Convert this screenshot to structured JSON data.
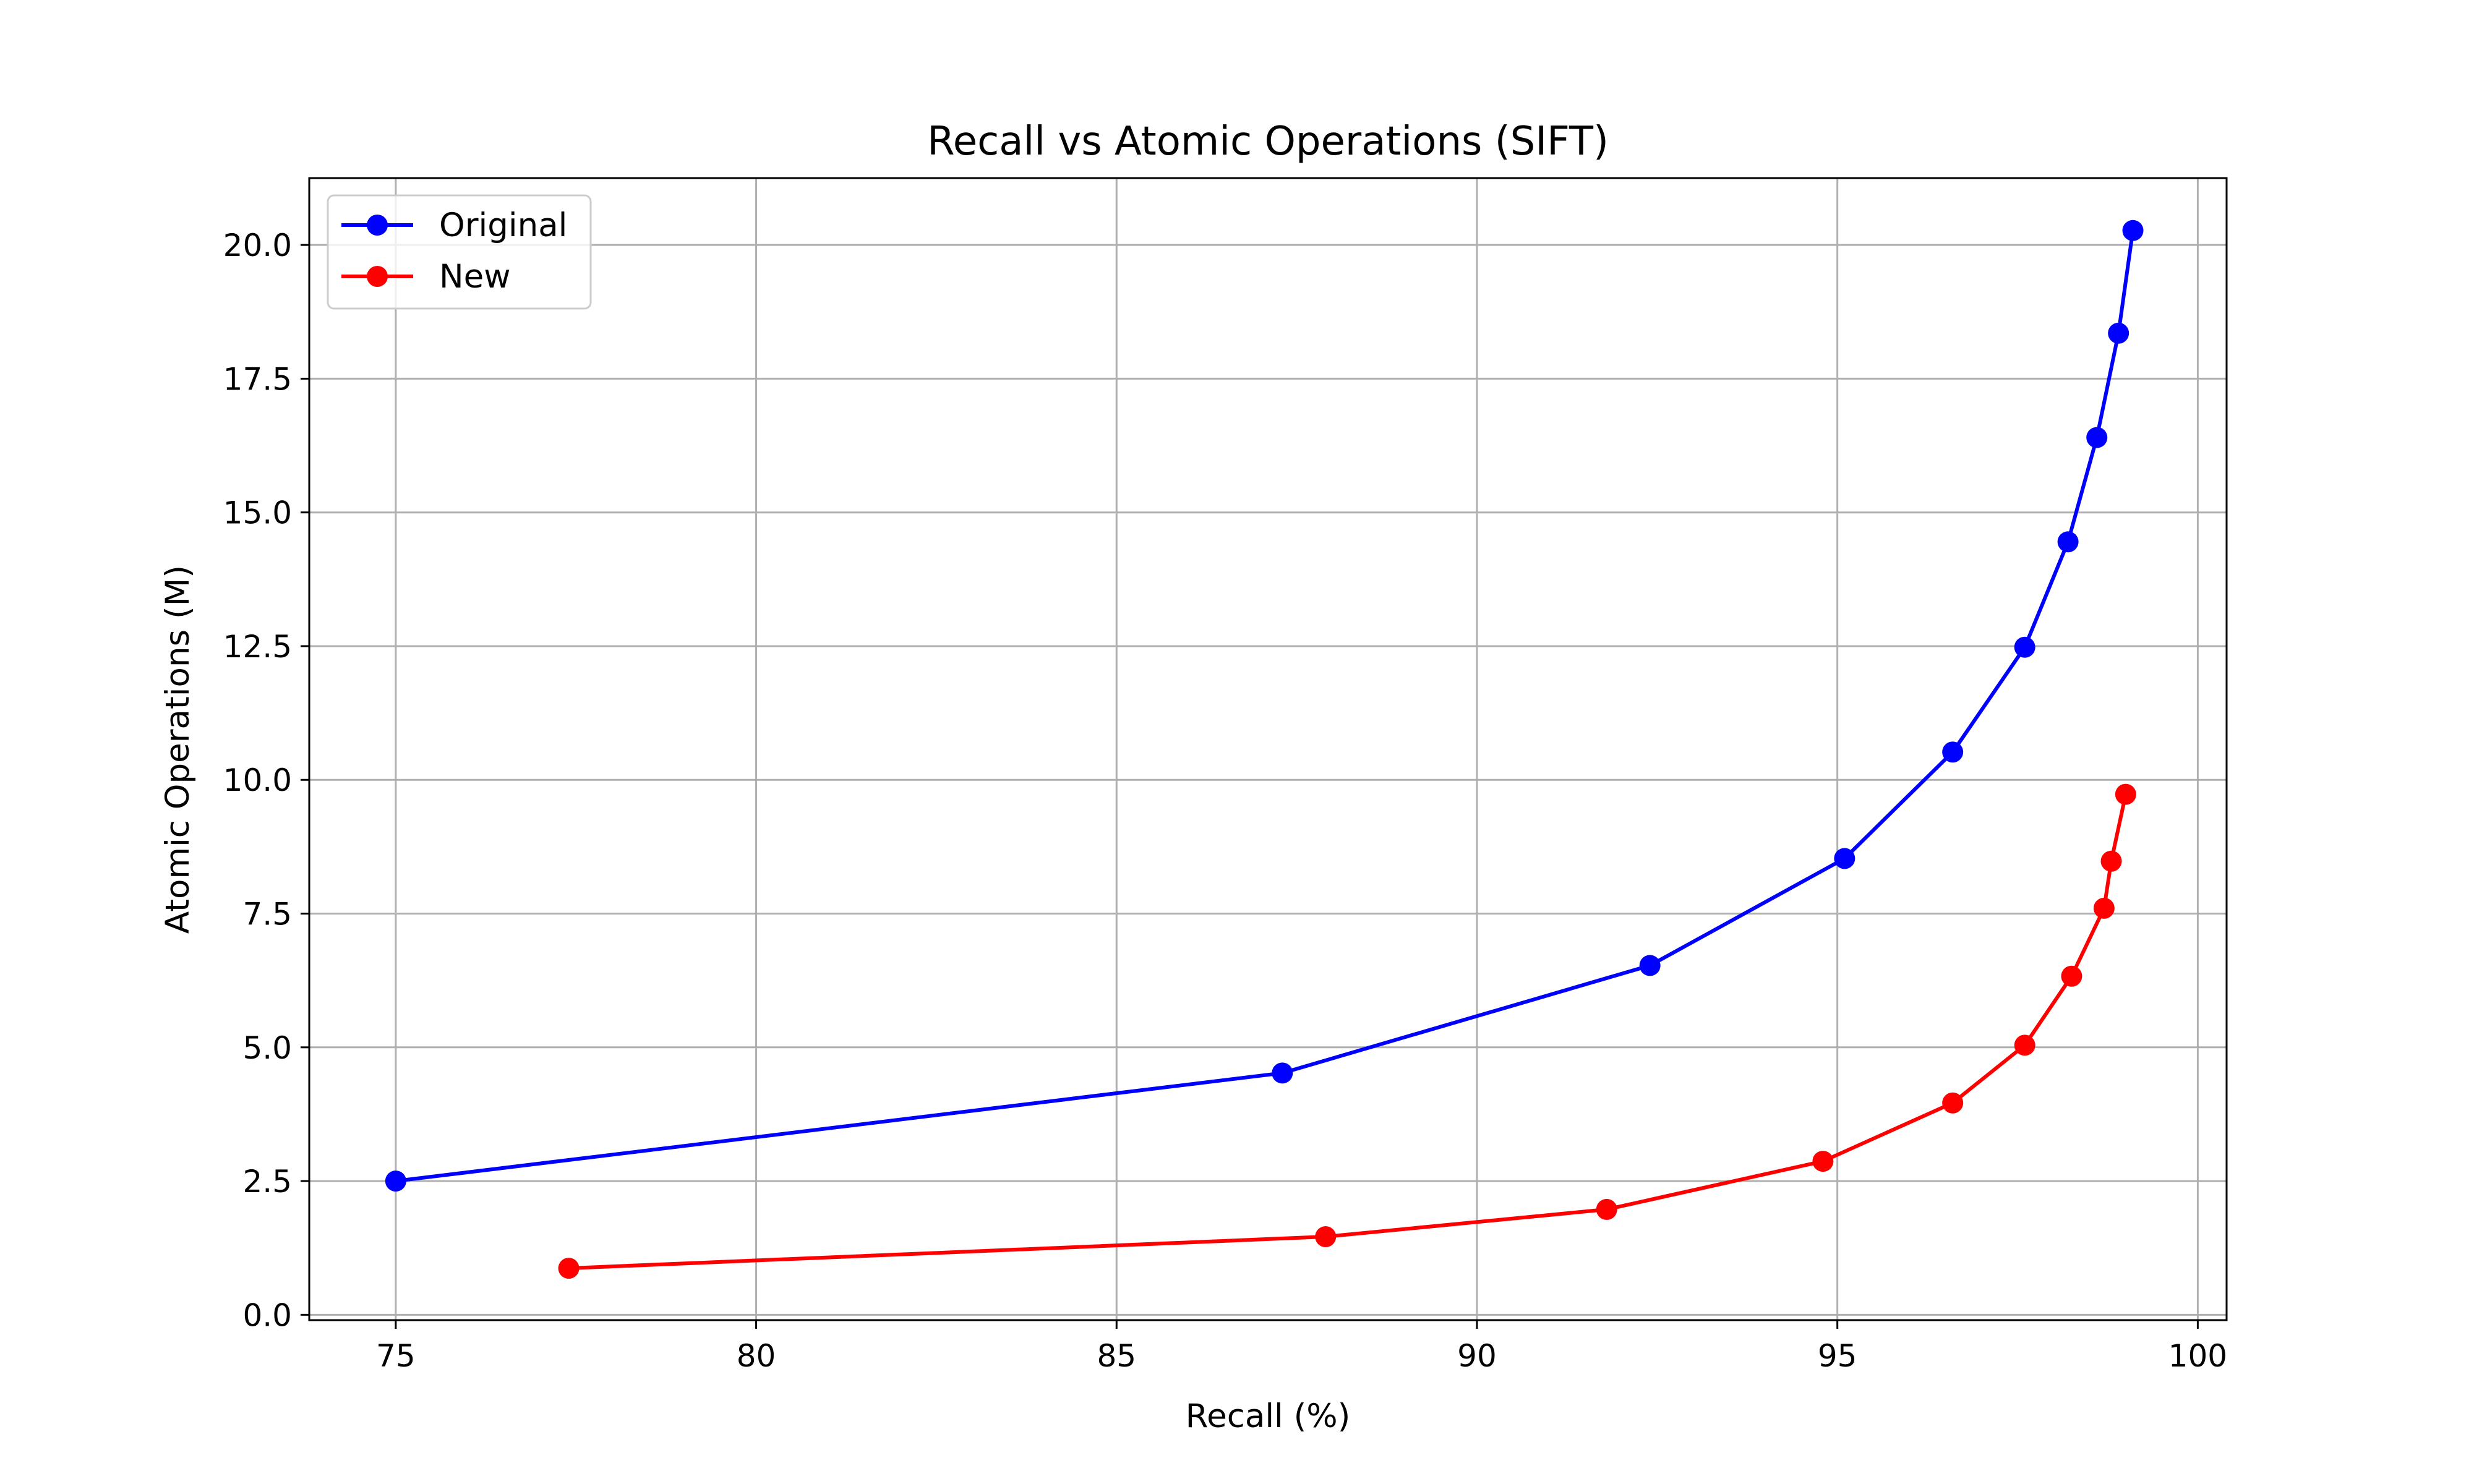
{
  "chart_data": {
    "type": "line",
    "title": "Recall vs Atomic Operations (SIFT)",
    "xlabel": "Recall (%)",
    "ylabel": "Atomic Operations (M)",
    "xlim": [
      73.8,
      100.4
    ],
    "ylim": [
      -0.1,
      21.25
    ],
    "xticks": [
      75,
      80,
      85,
      90,
      95,
      100
    ],
    "xtick_labels": [
      "75",
      "80",
      "85",
      "90",
      "95",
      "100"
    ],
    "yticks": [
      0,
      2.5,
      5,
      7.5,
      10,
      12.5,
      15,
      17.5,
      20
    ],
    "ytick_labels": [
      "0.0",
      "2.5",
      "5.0",
      "7.5",
      "10.0",
      "12.5",
      "15.0",
      "17.5",
      "20.0"
    ],
    "grid": true,
    "legend_position": "top-left",
    "series": [
      {
        "name": "Original",
        "color": "#0000ff",
        "x": [
          75.0,
          87.3,
          92.4,
          95.1,
          96.6,
          97.6,
          98.2,
          98.6,
          98.9,
          99.1
        ],
        "y": [
          2.5,
          4.52,
          6.53,
          8.53,
          10.52,
          12.48,
          14.45,
          16.4,
          18.35,
          20.27
        ]
      },
      {
        "name": "New",
        "color": "#ff0000",
        "x": [
          77.4,
          87.9,
          91.8,
          94.8,
          96.6,
          97.6,
          98.25,
          98.7,
          98.8,
          99.0
        ],
        "y": [
          0.87,
          1.46,
          1.97,
          2.87,
          3.96,
          5.04,
          6.33,
          7.6,
          8.48,
          9.73
        ]
      }
    ]
  }
}
